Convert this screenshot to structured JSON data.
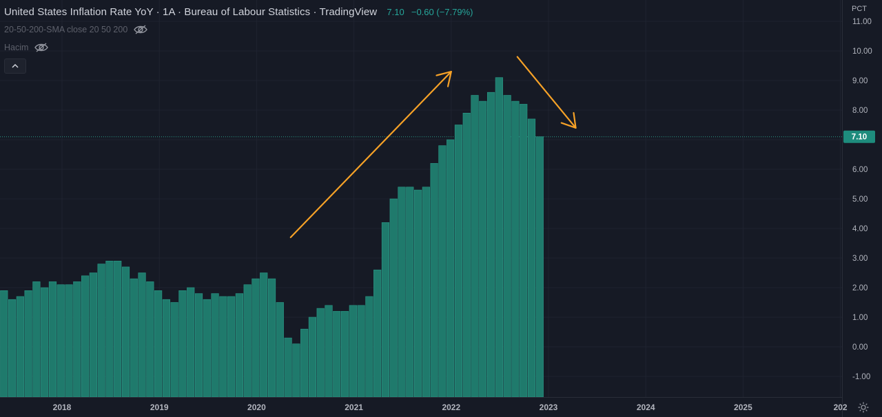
{
  "header": {
    "title": "United States Inflation Rate YoY · 1A · Bureau of Labour Statistics · TradingView",
    "last_value": "7.10",
    "change": "−0.60 (−7.79%)"
  },
  "indicators": [
    {
      "label": "20-50-200-SMA close 20 50 200",
      "icon": "eye-off-icon"
    },
    {
      "label": "Hacim",
      "icon": "eye-off-icon"
    }
  ],
  "price_axis": {
    "unit_label": "PCT",
    "current_value_label": "7.10"
  },
  "colors": {
    "background": "#161a25",
    "bar": "#1f7a6c",
    "bar_edge": "#2b9a88",
    "axis_text": "#b2b5be",
    "grid": "#1f2330",
    "annotation_arrow": "#f7a227",
    "price_badge": "#1e8c7d"
  },
  "chart_data": {
    "type": "bar",
    "title": "United States Inflation Rate YoY",
    "ylabel": "PCT",
    "ylim": [
      -1.5,
      11.3
    ],
    "y_ticks": [
      "11.00",
      "10.00",
      "9.00",
      "8.00",
      "7.00",
      "6.00",
      "5.00",
      "4.00",
      "3.00",
      "2.00",
      "1.00",
      "0.00",
      "-1.00"
    ],
    "x_ticks": [
      "2018",
      "2019",
      "2020",
      "2021",
      "2022",
      "2023",
      "2024",
      "2025",
      "202"
    ],
    "grid": true,
    "last_value": 7.1,
    "series": [
      {
        "values": [
          1.9,
          1.6,
          1.7,
          1.9,
          2.2,
          2.0,
          2.2,
          2.1,
          2.1,
          2.2,
          2.4,
          2.5,
          2.8,
          2.9,
          2.9,
          2.7,
          2.3,
          2.5,
          2.2,
          1.9,
          1.6,
          1.5,
          1.9,
          2.0,
          1.8,
          1.6,
          1.8,
          1.7,
          1.7,
          1.8,
          2.1,
          2.3,
          2.5,
          2.3,
          1.5,
          0.3,
          0.1,
          0.6,
          1.0,
          1.3,
          1.4,
          1.2,
          1.2,
          1.4,
          1.4,
          1.7,
          2.6,
          4.2,
          5.0,
          5.4,
          5.4,
          5.3,
          5.4,
          6.2,
          6.8,
          7.0,
          7.5,
          7.9,
          8.5,
          8.3,
          8.6,
          9.1,
          8.5,
          8.3,
          8.2,
          7.7,
          7.1
        ]
      }
    ],
    "annotations": [
      {
        "type": "arrow",
        "direction": "up",
        "from": {
          "year": 2020.35,
          "value": 3.7
        },
        "to": {
          "year": 2022.0,
          "value": 9.3
        }
      },
      {
        "type": "arrow",
        "direction": "down",
        "from": {
          "year": 2022.68,
          "value": 9.8
        },
        "to": {
          "year": 2023.28,
          "value": 7.4
        }
      }
    ]
  }
}
